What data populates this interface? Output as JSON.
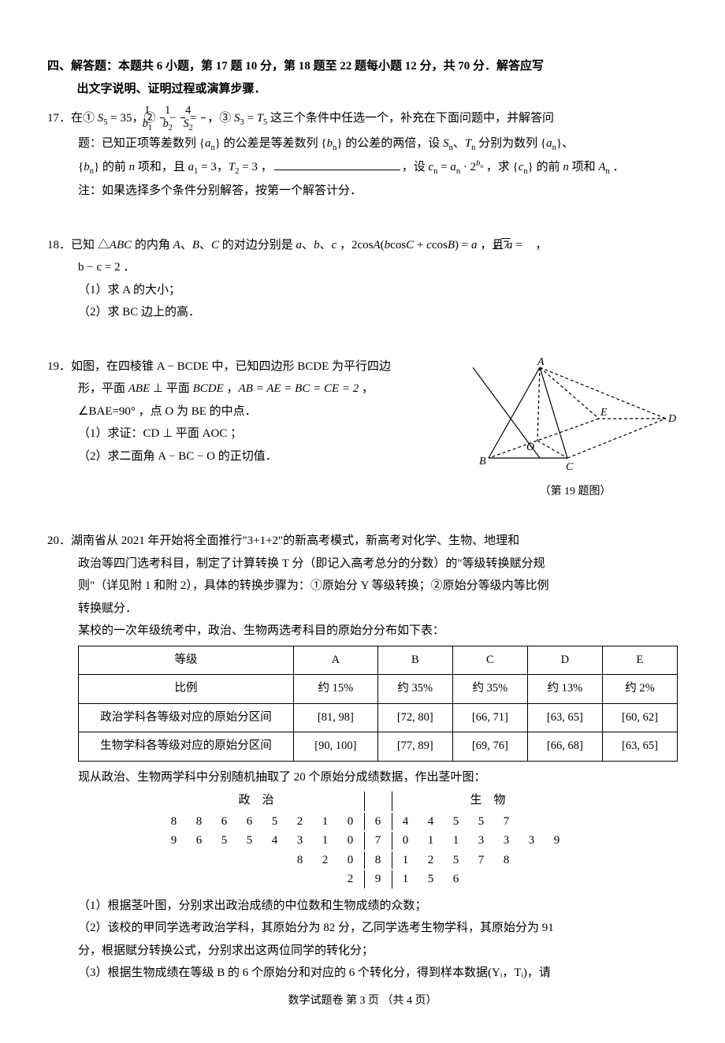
{
  "sectionHeader": {
    "line1": "四、解答题：本题共 6 小题，第 17 题 10 分，第 18 题至 22 题每小题 12 分，共 70 分．解答应写",
    "line2": "出文字说明、证明过程或演算步骤．"
  },
  "q17": {
    "num": "17．",
    "line1a": "在① ",
    "cond1_lhs": "S",
    "cond1_sub": "5",
    "cond1_eq": " = 35",
    "line1b": "，② ",
    "frac1_n": "1",
    "frac1_d_base": "b",
    "frac1_d_sub": "1",
    "minus": " − ",
    "frac2_n": "1",
    "frac2_d_base": "b",
    "frac2_d_sub": "2",
    "eq": " = ",
    "frac3_n": "4",
    "frac3_d_base": "S",
    "frac3_d_sub": "2",
    "line1c": "，③ ",
    "cond3_a_base": "S",
    "cond3_a_sub": "3",
    "cond3_mid": " = ",
    "cond3_b_base": "T",
    "cond3_b_sub": "5",
    "line1d": " 这三个条件中任选一个，补充在下面问题中，并解答问",
    "line2a": "题：已知正项等差数列 {",
    "an_base": "a",
    "an_sub": "n",
    "line2b": "} 的公差是等差数列 {",
    "bn_base": "b",
    "bn_sub": "n",
    "line2c": "} 的公差的两倍，设 ",
    "Sn_base": "S",
    "Sn_sub": "n",
    "sep": "、",
    "Tn_base": "T",
    "Tn_sub": "n",
    "line2d": " 分别为数列 {",
    "line2e": "}、",
    "line3a": "{",
    "line3b": "} 的前 ",
    "n": "n",
    "line3c": " 项和，且 ",
    "a1": "a",
    "a1sub": "1",
    "a1eq": " = 3，",
    "T2": "T",
    "T2sub": "2",
    "T2eq": " = 3 ，",
    "line3d": "，设 ",
    "cn": "c",
    "cnsub": "n",
    "cn_eq": " = ",
    "prod_a": "a",
    "prod_a_sub": "n",
    "dot": " · 2",
    "exp_b": "b",
    "exp_b_sub": "n",
    "line3e": " ，求 {",
    "line3f": "} 的前 ",
    "line3g": " 项和 ",
    "An": "A",
    "Ansub": "n",
    "period": " ．",
    "note": "注：如果选择多个条件分别解答，按第一个解答计分．"
  },
  "q18": {
    "num": "18．",
    "l1a": "已知 △",
    "ABC": "ABC",
    "l1b": " 的内角 ",
    "A": "A",
    "c1": "、",
    "B": "B",
    "c2": "、",
    "C": "C",
    "l1c": " 的对边分别是 ",
    "a": "a",
    "c3": "、",
    "b": "b",
    "c4": "、",
    "cc": "c",
    "l1d": " ，2cos",
    "l1e": "(",
    "bv": "b",
    "l1f": "cos",
    "Cv": "C",
    "plus": " + ",
    "cv": "c",
    "l1g": "cos",
    "Bv": "B",
    "l1h": ") = ",
    "av": "a",
    "l1i": " ，且 ",
    "aeq": "a",
    "eqs": " = ",
    "rad": "7",
    "comma": " ，",
    "l2": "b − c = 2 ．",
    "p1": "（1）求 A 的大小；",
    "p2": "（2）求 BC 边上的高．"
  },
  "q19": {
    "num": "19．",
    "l1": "如图，在四棱锥 A − BCDE 中，已知四边形 BCDE 为平行四边",
    "l2a": "形，平面 ",
    "ABE": "ABE",
    "perp": " ⊥ ",
    "l2b": "平面 ",
    "BCDE": "BCDE",
    "l2c": " ，",
    "eqchain": "AB = AE = BC = CE = 2",
    "l2d": " ，",
    "l3": "∠BAE=90° ，点 O 为 BE 的中点．",
    "p1": "（1）求证：CD ⊥ 平面 AOC ；",
    "p2": "（2）求二面角 A − BC − O 的正切值．",
    "caption": "（第 19 题图）",
    "labels": {
      "A": "A",
      "B": "B",
      "C": "C",
      "D": "D",
      "E": "E",
      "O": "O"
    }
  },
  "q20": {
    "num": "20．",
    "l1": "湖南省从 2021 年开始将全面推行\"3+1+2\"的新高考模式，新高考对化学、生物、地理和",
    "l2": "政治等四门选考科目，制定了计算转换 T 分（即记入高考总分的分数）的\"等级转换赋分规",
    "l3": "则\"（详见附 1 和附 2），具体的转换步骤为：①原始分 Y 等级转换；②原始分等级内等比例",
    "l4": "转换赋分．",
    "l5": "某校的一次年级统考中，政治、生物两选考科目的原始分分布如下表：",
    "table": {
      "headers": [
        "等级",
        "A",
        "B",
        "C",
        "D",
        "E"
      ],
      "rows": [
        [
          "比例",
          "约 15%",
          "约 35%",
          "约 35%",
          "约 13%",
          "约 2%"
        ],
        [
          "政治学科各等级对应的原始分区间",
          "[81, 98]",
          "[72, 80]",
          "[66, 71]",
          "[63, 65]",
          "[60, 62]"
        ],
        [
          "生物学科各等级对应的原始分区间",
          "[90, 100]",
          "[77, 89]",
          "[69, 76]",
          "[66, 68]",
          "[63, 65]"
        ]
      ]
    },
    "l6": "现从政治、生物两学科中分别随机抽取了 20 个原始分成绩数据，作出茎叶图：",
    "stemleaf": {
      "left_title": "政治",
      "right_title": "生物",
      "rows": [
        {
          "left": [
            "8",
            "8",
            "6",
            "6",
            "5",
            "2",
            "1",
            "0"
          ],
          "stem": "6",
          "right": [
            "4",
            "4",
            "5",
            "5",
            "7",
            "",
            "",
            ""
          ]
        },
        {
          "left": [
            "9",
            "6",
            "5",
            "5",
            "4",
            "3",
            "1",
            "0"
          ],
          "stem": "7",
          "right": [
            "0",
            "1",
            "1",
            "3",
            "3",
            "3",
            "9",
            ""
          ]
        },
        {
          "left": [
            "",
            "",
            "",
            "",
            "",
            "8",
            "2",
            "0"
          ],
          "stem": "8",
          "right": [
            "1",
            "2",
            "5",
            "7",
            "8",
            "",
            "",
            ""
          ]
        },
        {
          "left": [
            "",
            "",
            "",
            "",
            "",
            "",
            "",
            "2"
          ],
          "stem": "9",
          "right": [
            "1",
            "5",
            "6",
            "",
            "",
            "",
            "",
            ""
          ]
        }
      ]
    },
    "p1": "（1）根据茎叶图，分别求出政治成绩的中位数和生物成绩的众数；",
    "p2a": "（2）该校的甲同学选考政治学科，其原始分为 82 分，乙同学选考生物学科，其原始分为 91",
    "p2b": "分，根据赋分转换公式，分别求出这两位同学的转化分；",
    "p3": "（3）根据生物成绩在等级 B 的 6 个原始分和对应的 6 个转化分，得到样本数据(Yᵢ，Tᵢ)，请"
  },
  "footer": "数学试题卷  第 3 页 （共 4 页）"
}
